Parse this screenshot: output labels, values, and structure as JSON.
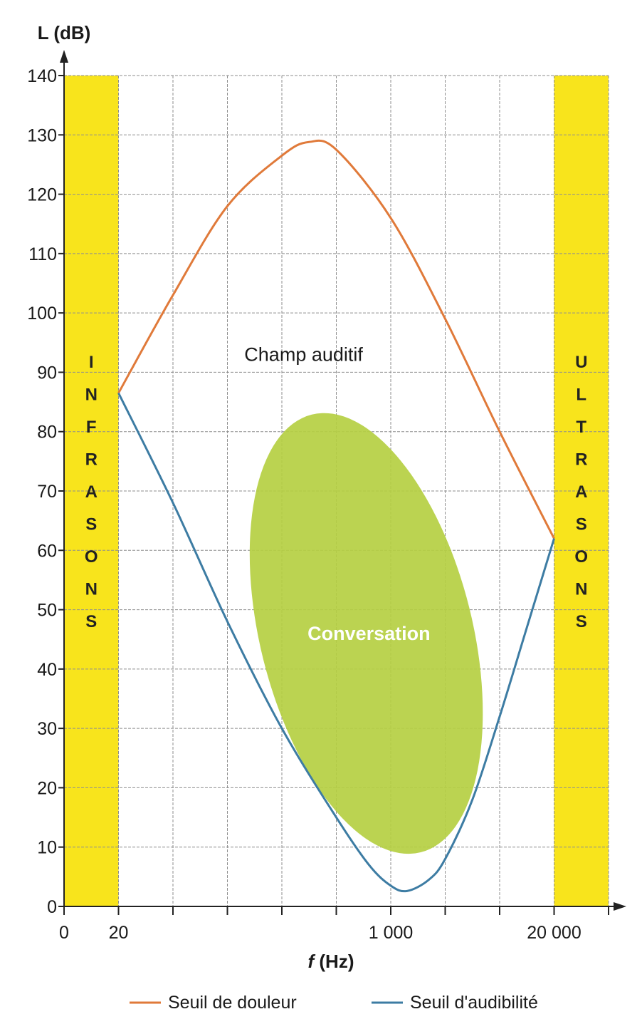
{
  "chart_data": {
    "type": "line",
    "ylabel": "L (dB)",
    "xlabel_italic": "f",
    "xlabel_rest": " (Hz)",
    "ylim": [
      0,
      140
    ],
    "y_ticks": [
      "0",
      "10",
      "20",
      "30",
      "40",
      "50",
      "60",
      "70",
      "80",
      "90",
      "100",
      "110",
      "120",
      "130",
      "140"
    ],
    "x_ticks": [
      {
        "label": "0",
        "i": 0
      },
      {
        "label": "20",
        "i": 1
      },
      {
        "label": "1 000",
        "i": 6
      },
      {
        "label": "20 000",
        "i": 9
      }
    ],
    "x_divisions": 10,
    "grid": true,
    "series": [
      {
        "name": "Seuil de douleur",
        "color": "#e07a3a",
        "points": [
          [
            1,
            86.5
          ],
          [
            2,
            103
          ],
          [
            3,
            118
          ],
          [
            4,
            126.5
          ],
          [
            4.5,
            128.8
          ],
          [
            5,
            127.5
          ],
          [
            6,
            116
          ],
          [
            7,
            99
          ],
          [
            8,
            80
          ],
          [
            9,
            62
          ]
        ]
      },
      {
        "name": "Seuil d'audibilité",
        "color": "#3d7ca3",
        "points": [
          [
            1,
            86.5
          ],
          [
            2,
            68
          ],
          [
            3,
            48
          ],
          [
            4,
            30
          ],
          [
            5,
            15
          ],
          [
            5.6,
            7
          ],
          [
            6,
            3.5
          ],
          [
            6.3,
            2.6
          ],
          [
            6.7,
            4.5
          ],
          [
            7,
            8
          ],
          [
            7.5,
            18
          ],
          [
            8,
            32
          ],
          [
            8.5,
            47
          ],
          [
            9,
            62
          ]
        ]
      }
    ],
    "bands": [
      {
        "letters": [
          "I",
          "N",
          "F",
          "R",
          "A",
          "S",
          "O",
          "N",
          "S"
        ],
        "x_range": [
          0,
          1
        ],
        "color": "#f8e41c"
      },
      {
        "letters": [
          "U",
          "L",
          "T",
          "R",
          "A",
          "S",
          "O",
          "N",
          "S"
        ],
        "x_range": [
          9,
          10
        ],
        "color": "#f8e41c"
      }
    ],
    "annotations": [
      {
        "text": "Champ auditif",
        "x": 4.4,
        "y": 93
      },
      {
        "text": "Conversation",
        "x": 5.6,
        "y": 46
      }
    ],
    "conversation_ellipse": {
      "center_x": 5.55,
      "center_y": 46,
      "half_width_x": 1.95,
      "half_height_y": 38,
      "rotation_deg": -14,
      "color": "#b5cf42"
    },
    "legend": [
      "Seuil de douleur",
      "Seuil d'audibilité"
    ],
    "legend_position": "bottom"
  }
}
